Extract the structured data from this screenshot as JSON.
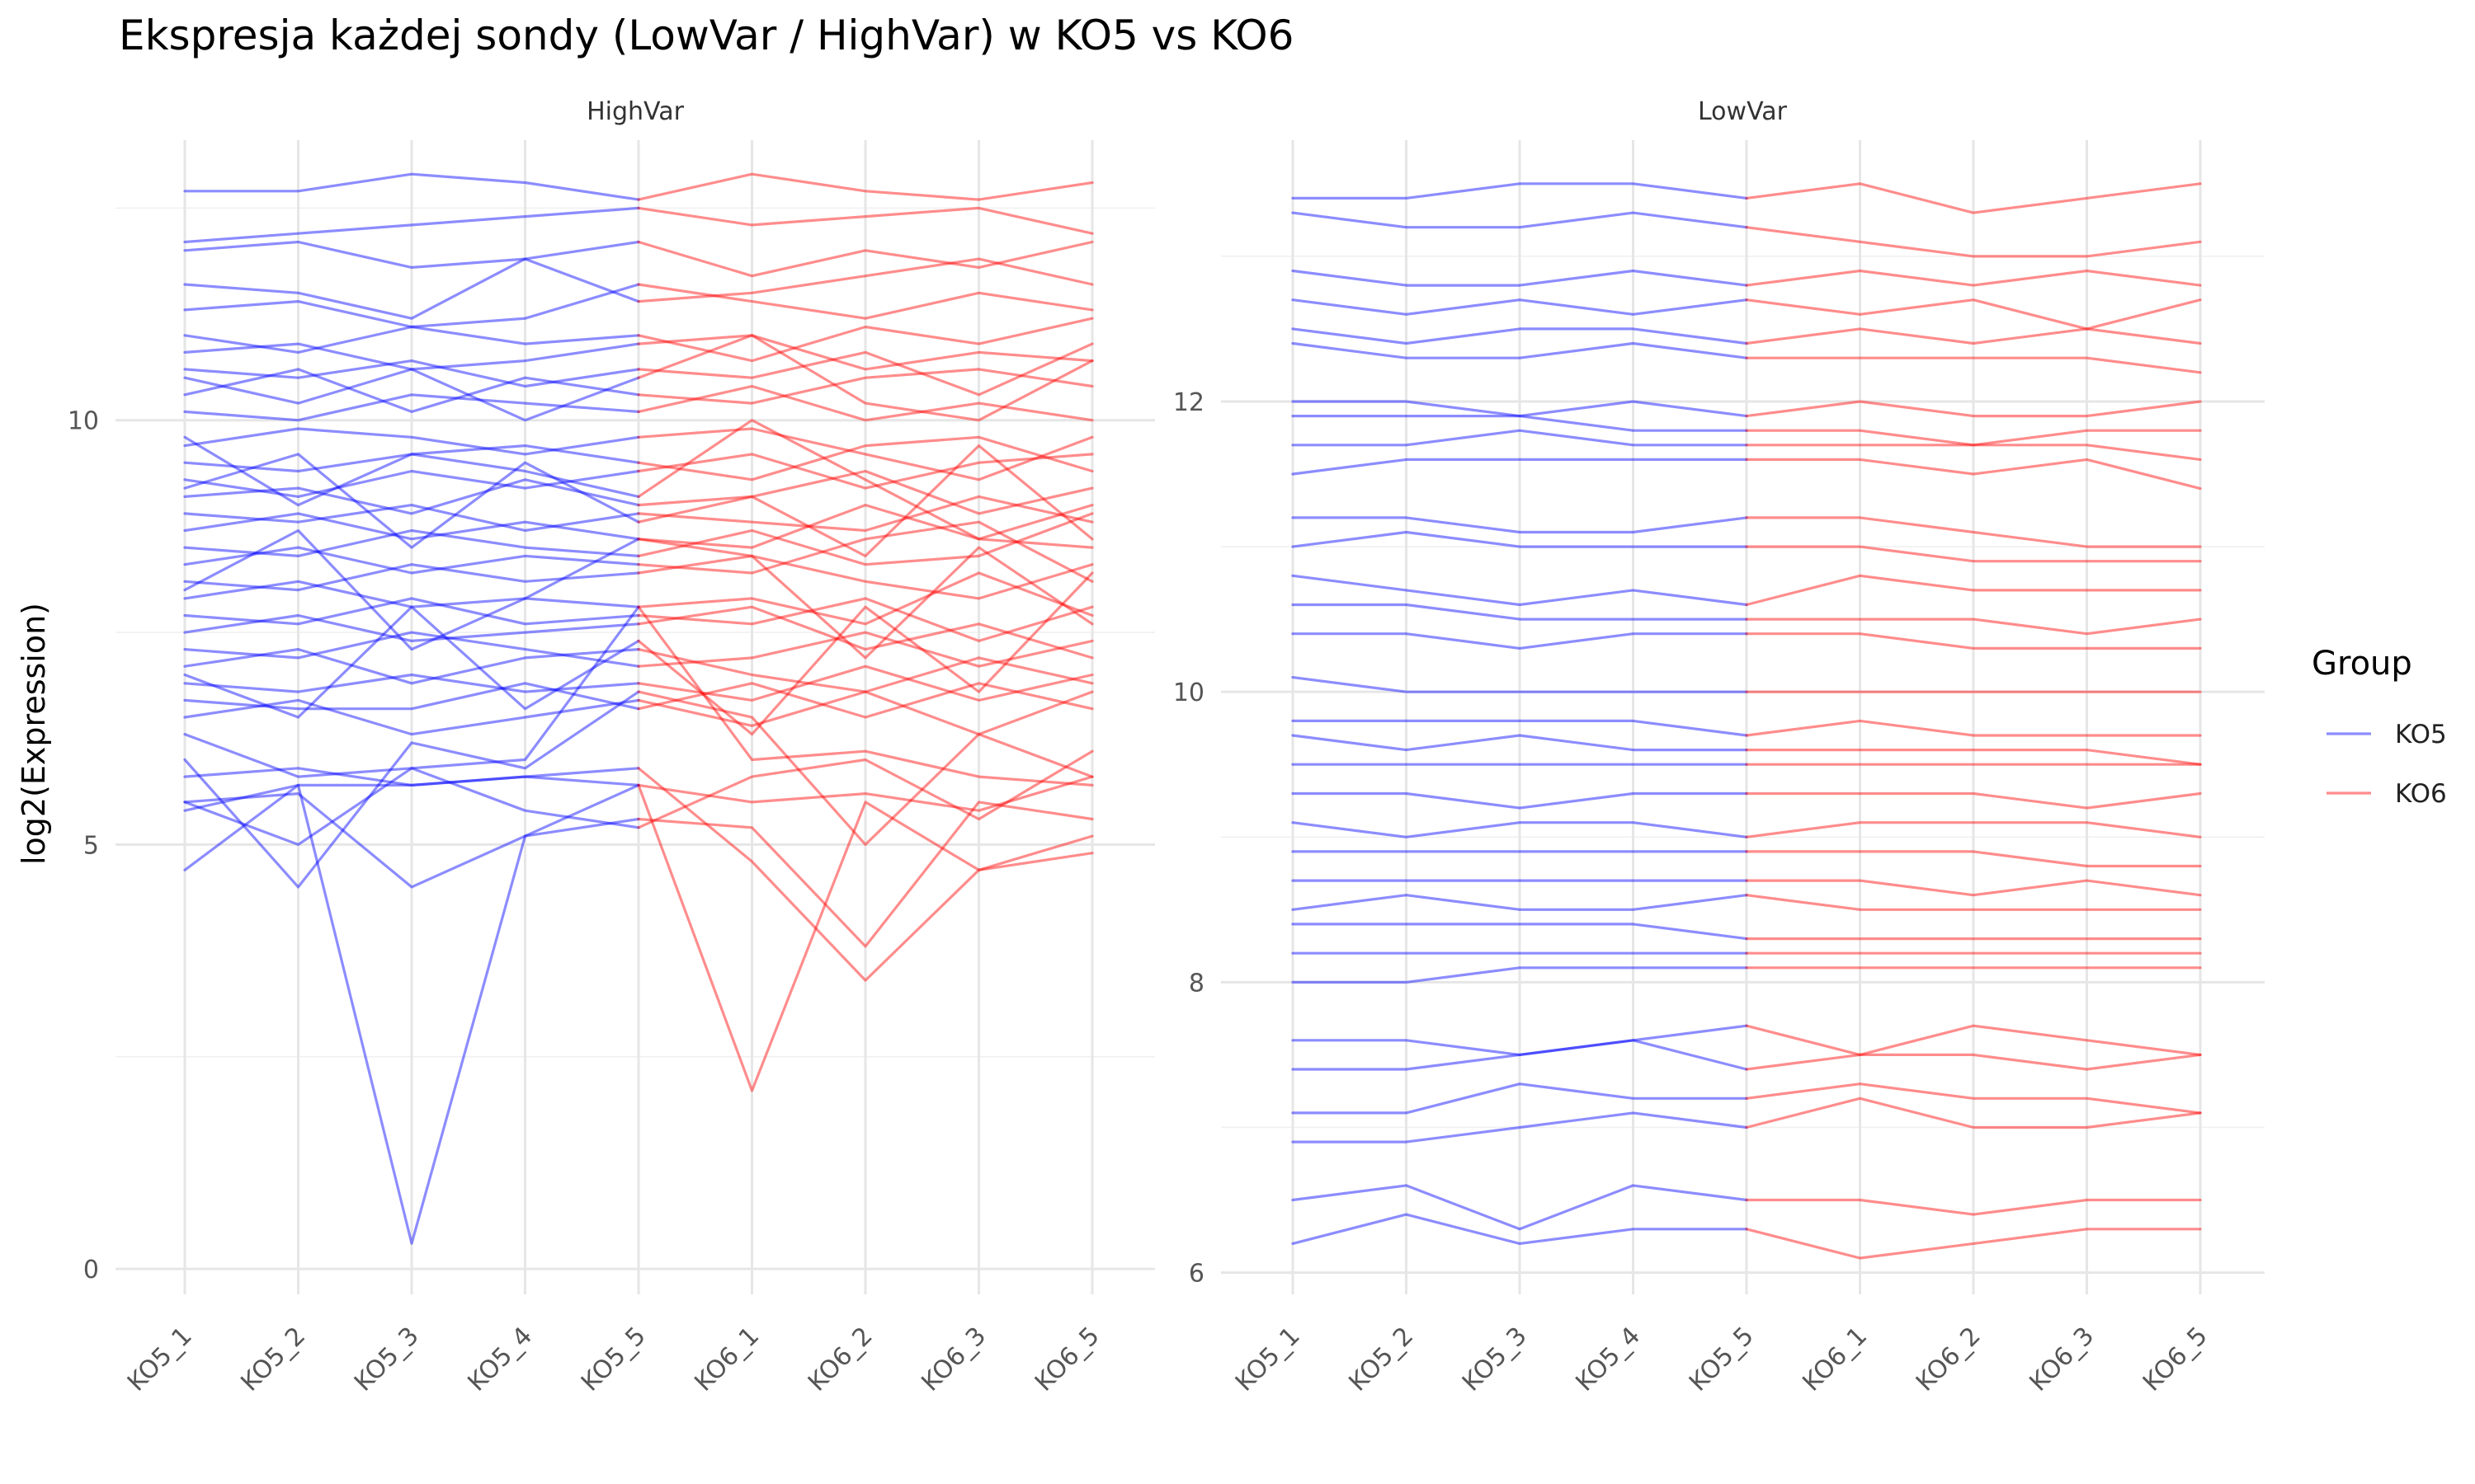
{
  "title": "Ekspresja każdej sondy (LowVar / HighVar) w KO5 vs KO6",
  "ylabel": "log2(Expression)",
  "legend": {
    "title": "Group",
    "items": [
      {
        "label": "KO5",
        "color": "#0000ff"
      },
      {
        "label": "KO6",
        "color": "#ff0000"
      }
    ]
  },
  "chart_data": [
    {
      "type": "line",
      "facet": "HighVar",
      "categories": [
        "KO5_1",
        "KO5_2",
        "KO5_3",
        "KO5_4",
        "KO5_5",
        "KO6_1",
        "KO6_2",
        "KO6_3",
        "KO6_5"
      ],
      "group_of_category": [
        "KO5",
        "KO5",
        "KO5",
        "KO5",
        "KO5",
        "KO6",
        "KO6",
        "KO6",
        "KO6"
      ],
      "ylim": [
        -0.3,
        13.3
      ],
      "yticks": [
        0,
        5,
        10
      ],
      "series": [
        {
          "values": [
            12.7,
            12.7,
            12.9,
            12.8,
            12.6,
            12.9,
            12.7,
            12.6,
            12.8
          ]
        },
        {
          "values": [
            12.1,
            12.2,
            12.3,
            12.4,
            12.5,
            12.3,
            12.4,
            12.5,
            12.2
          ]
        },
        {
          "values": [
            12.0,
            12.1,
            11.8,
            11.9,
            12.1,
            11.7,
            12.0,
            11.8,
            12.1
          ]
        },
        {
          "values": [
            11.6,
            11.5,
            11.2,
            11.9,
            11.4,
            11.5,
            11.7,
            11.9,
            11.6
          ]
        },
        {
          "values": [
            11.3,
            11.4,
            11.1,
            11.2,
            11.6,
            11.4,
            11.2,
            11.5,
            11.3
          ]
        },
        {
          "values": [
            11.0,
            10.8,
            11.1,
            10.9,
            11.0,
            10.7,
            11.1,
            10.9,
            11.2
          ]
        },
        {
          "values": [
            10.8,
            10.9,
            10.6,
            10.7,
            10.9,
            11.0,
            10.6,
            10.8,
            10.7
          ]
        },
        {
          "values": [
            10.6,
            10.5,
            10.7,
            10.4,
            10.6,
            10.5,
            10.8,
            10.3,
            10.9
          ]
        },
        {
          "values": [
            10.3,
            10.6,
            10.1,
            10.5,
            10.3,
            10.2,
            10.5,
            10.6,
            10.4
          ]
        },
        {
          "values": [
            10.1,
            10.0,
            10.3,
            10.2,
            10.1,
            10.4,
            10.0,
            10.2,
            10.0
          ]
        },
        {
          "values": [
            9.7,
            9.9,
            9.8,
            9.6,
            9.8,
            9.9,
            9.6,
            9.3,
            9.8
          ]
        },
        {
          "values": [
            9.5,
            9.4,
            9.6,
            9.7,
            9.5,
            9.3,
            9.7,
            9.8,
            9.4
          ]
        },
        {
          "values": [
            9.3,
            9.1,
            9.4,
            9.2,
            9.4,
            9.6,
            9.2,
            9.5,
            9.6
          ]
        },
        {
          "values": [
            9.1,
            9.2,
            8.9,
            9.3,
            9.0,
            9.1,
            9.4,
            8.9,
            9.2
          ]
        },
        {
          "values": [
            8.9,
            8.8,
            9.0,
            8.7,
            8.9,
            8.8,
            8.7,
            9.1,
            8.8
          ]
        },
        {
          "values": [
            8.7,
            8.9,
            8.6,
            8.8,
            8.6,
            8.5,
            9.0,
            8.6,
            8.5
          ]
        },
        {
          "values": [
            8.5,
            8.4,
            8.7,
            8.5,
            8.4,
            8.7,
            8.3,
            8.4,
            8.9
          ]
        },
        {
          "values": [
            8.3,
            8.5,
            8.2,
            8.4,
            8.3,
            8.2,
            8.6,
            8.8,
            8.1
          ]
        },
        {
          "values": [
            8.1,
            8.0,
            8.3,
            8.1,
            8.2,
            8.4,
            8.1,
            7.9,
            8.3
          ]
        },
        {
          "values": [
            7.9,
            8.1,
            7.8,
            7.9,
            7.8,
            7.9,
            7.6,
            8.2,
            7.7
          ]
        },
        {
          "values": [
            7.7,
            7.6,
            7.9,
            7.6,
            7.7,
            7.6,
            7.9,
            7.4,
            7.8
          ]
        },
        {
          "values": [
            7.5,
            7.7,
            7.4,
            7.5,
            7.6,
            7.8,
            7.3,
            7.6,
            7.2
          ]
        },
        {
          "values": [
            7.3,
            7.2,
            7.5,
            7.3,
            7.1,
            7.2,
            7.5,
            7.1,
            7.4
          ]
        },
        {
          "values": [
            7.1,
            7.3,
            6.9,
            7.2,
            7.3,
            7.0,
            6.8,
            7.2,
            6.9
          ]
        },
        {
          "values": [
            6.9,
            6.8,
            7.0,
            6.8,
            6.9,
            6.7,
            7.1,
            6.7,
            7.0
          ]
        },
        {
          "values": [
            6.7,
            6.6,
            6.6,
            6.9,
            6.6,
            6.9,
            6.5,
            6.9,
            6.6
          ]
        },
        {
          "values": [
            6.5,
            6.7,
            6.3,
            6.5,
            6.7,
            6.4,
            6.8,
            6.3,
            6.8
          ]
        },
        {
          "values": [
            9.8,
            9.0,
            9.6,
            9.4,
            9.1,
            10.0,
            9.3,
            8.6,
            9.0
          ]
        },
        {
          "values": [
            8.0,
            8.7,
            7.3,
            7.9,
            8.6,
            8.4,
            7.2,
            8.5,
            7.6
          ]
        },
        {
          "values": [
            7.0,
            6.5,
            7.8,
            6.6,
            7.4,
            6.3,
            7.8,
            6.8,
            8.2
          ]
        },
        {
          "values": [
            9.2,
            9.6,
            8.5,
            9.5,
            8.8,
            9.1,
            8.4,
            9.7,
            8.6
          ]
        },
        {
          "values": [
            10.5,
            10.2,
            10.6,
            10.0,
            10.5,
            11.0,
            10.2,
            10.0,
            10.7
          ]
        },
        {
          "values": [
            6.0,
            4.5,
            6.2,
            5.9,
            6.8,
            6.5,
            5.0,
            6.3,
            5.8
          ]
        },
        {
          "values": [
            5.5,
            5.0,
            5.9,
            5.4,
            5.2,
            5.8,
            6.0,
            5.3,
            6.1
          ]
        },
        {
          "values": [
            4.7,
            5.7,
            0.3,
            5.1,
            5.7,
            2.1,
            5.5,
            4.7,
            5.1
          ]
        },
        {
          "values": [
            5.5,
            5.6,
            4.5,
            5.1,
            5.3,
            5.2,
            3.8,
            5.5,
            5.3
          ]
        },
        {
          "values": [
            5.8,
            5.9,
            5.7,
            5.8,
            5.9,
            4.8,
            3.4,
            4.7,
            4.9
          ]
        },
        {
          "values": [
            6.3,
            5.8,
            5.9,
            6.0,
            7.8,
            6.0,
            6.1,
            5.8,
            5.7
          ]
        },
        {
          "values": [
            5.4,
            5.7,
            5.7,
            5.8,
            5.7,
            5.5,
            5.6,
            5.4,
            5.8
          ]
        }
      ]
    },
    {
      "type": "line",
      "facet": "LowVar",
      "categories": [
        "KO5_1",
        "KO5_2",
        "KO5_3",
        "KO5_4",
        "KO5_5",
        "KO6_1",
        "KO6_2",
        "KO6_3",
        "KO6_5"
      ],
      "group_of_category": [
        "KO5",
        "KO5",
        "KO5",
        "KO5",
        "KO5",
        "KO6",
        "KO6",
        "KO6",
        "KO6"
      ],
      "ylim": [
        5.85,
        13.8
      ],
      "yticks": [
        6,
        8,
        10,
        12
      ],
      "series": [
        {
          "values": [
            13.4,
            13.4,
            13.5,
            13.5,
            13.4,
            13.5,
            13.3,
            13.4,
            13.5
          ]
        },
        {
          "values": [
            13.3,
            13.2,
            13.2,
            13.3,
            13.2,
            13.1,
            13.0,
            13.0,
            13.1
          ]
        },
        {
          "values": [
            12.9,
            12.8,
            12.8,
            12.9,
            12.8,
            12.9,
            12.8,
            12.9,
            12.8
          ]
        },
        {
          "values": [
            12.7,
            12.6,
            12.7,
            12.6,
            12.7,
            12.6,
            12.7,
            12.5,
            12.7
          ]
        },
        {
          "values": [
            12.5,
            12.4,
            12.5,
            12.5,
            12.4,
            12.5,
            12.4,
            12.5,
            12.4
          ]
        },
        {
          "values": [
            12.4,
            12.3,
            12.3,
            12.4,
            12.3,
            12.3,
            12.3,
            12.3,
            12.2
          ]
        },
        {
          "values": [
            12.0,
            12.0,
            11.9,
            12.0,
            11.9,
            12.0,
            11.9,
            11.9,
            12.0
          ]
        },
        {
          "values": [
            11.9,
            11.9,
            11.9,
            11.8,
            11.8,
            11.8,
            11.7,
            11.8,
            11.8
          ]
        },
        {
          "values": [
            11.7,
            11.7,
            11.8,
            11.7,
            11.7,
            11.7,
            11.7,
            11.7,
            11.6
          ]
        },
        {
          "values": [
            11.5,
            11.6,
            11.6,
            11.6,
            11.6,
            11.6,
            11.5,
            11.6,
            11.4
          ]
        },
        {
          "values": [
            11.2,
            11.2,
            11.1,
            11.1,
            11.2,
            11.2,
            11.1,
            11.0,
            11.0
          ]
        },
        {
          "values": [
            11.0,
            11.1,
            11.0,
            11.0,
            11.0,
            11.0,
            10.9,
            10.9,
            10.9
          ]
        },
        {
          "values": [
            10.8,
            10.7,
            10.6,
            10.7,
            10.6,
            10.8,
            10.7,
            10.7,
            10.7
          ]
        },
        {
          "values": [
            10.6,
            10.6,
            10.5,
            10.5,
            10.5,
            10.5,
            10.5,
            10.4,
            10.5
          ]
        },
        {
          "values": [
            10.4,
            10.4,
            10.3,
            10.4,
            10.4,
            10.4,
            10.3,
            10.3,
            10.3
          ]
        },
        {
          "values": [
            10.1,
            10.0,
            10.0,
            10.0,
            10.0,
            10.0,
            10.0,
            10.0,
            10.0
          ]
        },
        {
          "values": [
            9.8,
            9.8,
            9.8,
            9.8,
            9.7,
            9.8,
            9.7,
            9.7,
            9.7
          ]
        },
        {
          "values": [
            9.7,
            9.6,
            9.7,
            9.6,
            9.6,
            9.6,
            9.6,
            9.6,
            9.5
          ]
        },
        {
          "values": [
            9.5,
            9.5,
            9.5,
            9.5,
            9.5,
            9.5,
            9.5,
            9.5,
            9.5
          ]
        },
        {
          "values": [
            9.3,
            9.3,
            9.2,
            9.3,
            9.3,
            9.3,
            9.3,
            9.2,
            9.3
          ]
        },
        {
          "values": [
            9.1,
            9.0,
            9.1,
            9.1,
            9.0,
            9.1,
            9.1,
            9.1,
            9.0
          ]
        },
        {
          "values": [
            8.9,
            8.9,
            8.9,
            8.9,
            8.9,
            8.9,
            8.9,
            8.8,
            8.8
          ]
        },
        {
          "values": [
            8.7,
            8.7,
            8.7,
            8.7,
            8.7,
            8.7,
            8.6,
            8.7,
            8.6
          ]
        },
        {
          "values": [
            8.5,
            8.6,
            8.5,
            8.5,
            8.6,
            8.5,
            8.5,
            8.5,
            8.5
          ]
        },
        {
          "values": [
            8.4,
            8.4,
            8.4,
            8.4,
            8.3,
            8.3,
            8.3,
            8.3,
            8.3
          ]
        },
        {
          "values": [
            8.2,
            8.2,
            8.2,
            8.2,
            8.2,
            8.2,
            8.2,
            8.2,
            8.2
          ]
        },
        {
          "values": [
            8.0,
            8.0,
            8.1,
            8.1,
            8.1,
            8.1,
            8.1,
            8.1,
            8.1
          ]
        },
        {
          "values": [
            7.6,
            7.6,
            7.5,
            7.6,
            7.7,
            7.5,
            7.7,
            7.6,
            7.5
          ]
        },
        {
          "values": [
            7.4,
            7.4,
            7.5,
            7.6,
            7.4,
            7.5,
            7.5,
            7.4,
            7.5
          ]
        },
        {
          "values": [
            7.1,
            7.1,
            7.3,
            7.2,
            7.2,
            7.3,
            7.2,
            7.2,
            7.1
          ]
        },
        {
          "values": [
            6.9,
            6.9,
            7.0,
            7.1,
            7.0,
            7.2,
            7.0,
            7.0,
            7.1
          ]
        },
        {
          "values": [
            6.5,
            6.6,
            6.3,
            6.6,
            6.5,
            6.5,
            6.4,
            6.5,
            6.5
          ]
        },
        {
          "values": [
            6.2,
            6.4,
            6.2,
            6.3,
            6.3,
            6.1,
            6.2,
            6.3,
            6.3
          ]
        }
      ]
    }
  ]
}
